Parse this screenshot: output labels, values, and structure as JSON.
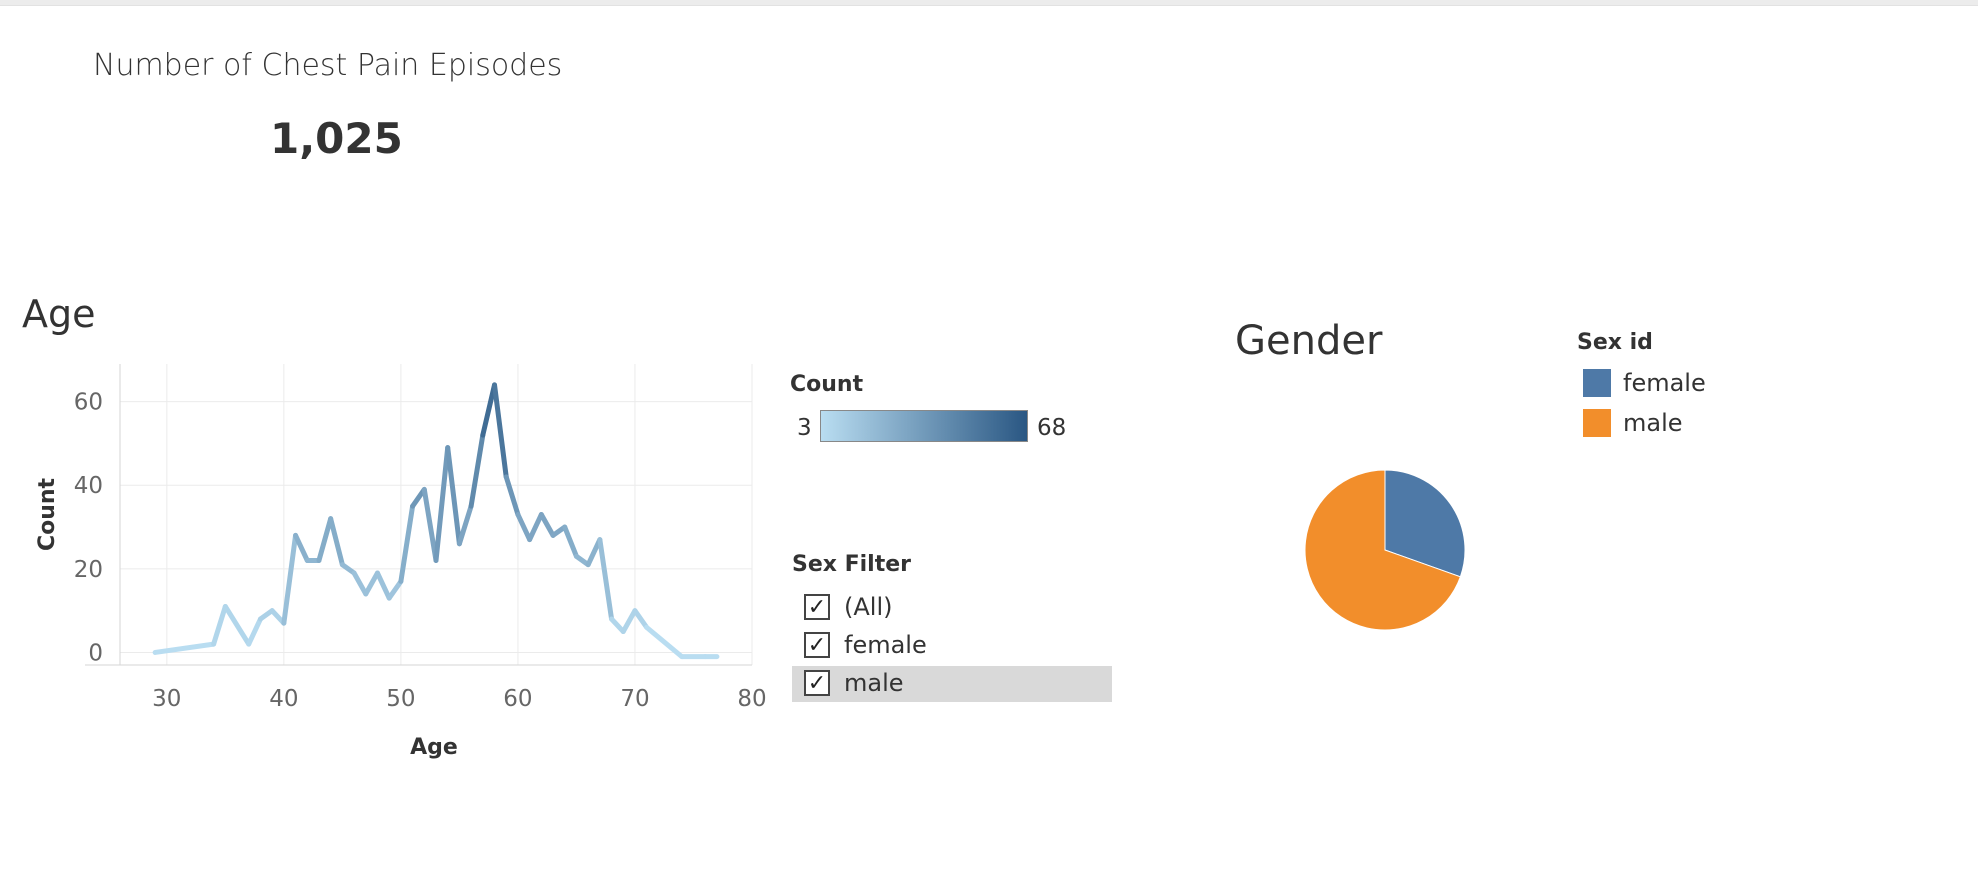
{
  "kpi": {
    "title": "Number of Chest Pain Episodes",
    "value": "1,025"
  },
  "age_chart": {
    "title": "Age"
  },
  "gender_chart": {
    "title": "Gender"
  },
  "count_legend": {
    "title": "Count",
    "min_label": "3",
    "max_label": "68",
    "color_low": "#b9ddf1",
    "color_high": "#2a5783"
  },
  "sex_filter": {
    "title": "Sex Filter",
    "items": [
      {
        "label": "(All)",
        "checked": true,
        "check": "✓"
      },
      {
        "label": "female",
        "checked": true,
        "check": "✓"
      },
      {
        "label": "male",
        "checked": true,
        "check": "✓"
      }
    ]
  },
  "sex_legend": {
    "title": "Sex id",
    "items": [
      {
        "label": "female",
        "color": "#4e79a7"
      },
      {
        "label": "male",
        "color": "#f28e2b"
      }
    ]
  },
  "chart_data": [
    {
      "type": "line",
      "title": "Age",
      "xlabel": "Age",
      "ylabel": "Count",
      "xlim": [
        26,
        80
      ],
      "ylim": [
        -3,
        69
      ],
      "xticks": [
        "30",
        "40",
        "50",
        "60",
        "70",
        "80"
      ],
      "yticks": [
        "0",
        "20",
        "40",
        "60"
      ],
      "grid": true,
      "color_scale": {
        "min": 3,
        "max": 68
      },
      "x": [
        29,
        34,
        35,
        37,
        38,
        39,
        40,
        41,
        42,
        43,
        44,
        45,
        46,
        47,
        48,
        49,
        50,
        51,
        52,
        53,
        54,
        55,
        56,
        57,
        58,
        59,
        60,
        61,
        62,
        63,
        64,
        65,
        66,
        67,
        68,
        69,
        70,
        71,
        74,
        76,
        77
      ],
      "values": [
        0,
        2,
        11,
        2,
        8,
        10,
        7,
        28,
        22,
        22,
        32,
        21,
        19,
        14,
        19,
        13,
        17,
        35,
        39,
        22,
        49,
        26,
        35,
        52,
        64,
        42,
        33,
        27,
        33,
        28,
        30,
        23,
        21,
        27,
        8,
        5,
        10,
        6,
        -1,
        -1,
        -1
      ]
    },
    {
      "type": "pie",
      "title": "Gender",
      "labels": [
        "female",
        "male"
      ],
      "values": [
        312,
        713
      ],
      "colors": [
        "#4e79a7",
        "#f28e2b"
      ]
    }
  ]
}
